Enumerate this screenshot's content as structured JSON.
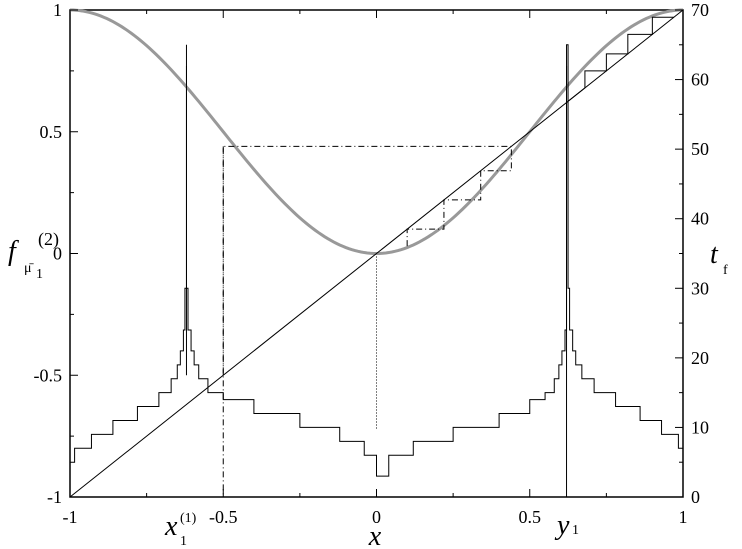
{
  "chart_data": {
    "type": "line",
    "x_axis": {
      "label": "x",
      "range": [
        -1,
        1
      ],
      "ticks": [
        -1,
        -0.5,
        0,
        0.5,
        1
      ],
      "tick_labels": [
        "-1",
        "-0.5",
        "0",
        "0.5",
        "1"
      ],
      "marked_points": [
        {
          "label": "x",
          "subscript": "1",
          "superscript": "(1)",
          "x": -0.62
        },
        {
          "label": "y",
          "subscript": "1",
          "x": 0.62
        }
      ]
    },
    "y_left": {
      "label": "f",
      "label_sub": "μ̄",
      "label_sub2": "1",
      "label_sup": "(2)",
      "range": [
        -1,
        1
      ],
      "ticks": [
        -1,
        -0.5,
        0,
        0.5,
        1
      ],
      "tick_labels": [
        "-1",
        "-0.5",
        "0",
        "0.5",
        "1"
      ]
    },
    "y_right": {
      "label": "t",
      "label_sub": "f",
      "range": [
        0,
        70
      ],
      "ticks": [
        0,
        10,
        20,
        30,
        40,
        50,
        60,
        70
      ],
      "tick_labels": [
        "0",
        "10",
        "20",
        "30",
        "40",
        "50",
        "60",
        "70"
      ]
    },
    "series": [
      {
        "kind": "map_curve",
        "axis": "left",
        "color": "#999999",
        "formula": "f(x) = 2x^2 - 1 scaled: cos-like from 1 at x=-1 to 0 at x=0 to 1 at x=1",
        "x": [
          -1,
          -0.8,
          -0.62,
          -0.4,
          -0.2,
          0,
          0.2,
          0.4,
          0.62,
          0.8,
          1
        ],
        "y": [
          1,
          0.9,
          0.62,
          0.33,
          0.09,
          0,
          0.09,
          0.33,
          0.62,
          0.9,
          1
        ]
      },
      {
        "kind": "diagonal",
        "axis": "left",
        "color": "#000000",
        "x": [
          -1,
          1
        ],
        "y": [
          -1,
          1
        ]
      },
      {
        "kind": "steps",
        "axis": "right",
        "color": "#000000",
        "x": [
          -1,
          -0.98,
          -0.92,
          -0.82,
          -0.72,
          -0.62,
          -0.52,
          -0.4,
          -0.25,
          -0.1,
          0,
          0.1,
          0.25,
          0.4,
          0.52,
          0.62,
          0.72,
          0.82,
          0.92,
          0.98,
          1
        ],
        "y": [
          5,
          7,
          9,
          11,
          13,
          65,
          15,
          12,
          10,
          8,
          4,
          8,
          10,
          12,
          15,
          65,
          13,
          11,
          9,
          7,
          5
        ]
      },
      {
        "kind": "cobweb",
        "axis": "left",
        "color": "#000000",
        "style": "dash-dot",
        "x": [
          -0.5,
          -0.5,
          0.44,
          0.44,
          0.34,
          0.34,
          0.22,
          0.22,
          0.1,
          0.1
        ],
        "y": [
          -0.5,
          0.44,
          0.44,
          0.34,
          0.34,
          0.22,
          0.22,
          0.1,
          0.1,
          0.02
        ]
      },
      {
        "kind": "cobweb",
        "axis": "left",
        "color": "#000000",
        "style": "solid",
        "x": [
          0.62,
          0.68,
          0.68,
          0.75,
          0.75,
          0.82,
          0.82,
          0.9,
          0.9,
          0.97
        ],
        "y": [
          0.62,
          0.68,
          0.75,
          0.75,
          0.82,
          0.82,
          0.9,
          0.9,
          0.97,
          0.97
        ]
      }
    ],
    "vertical_lines": [
      {
        "x": -0.62,
        "y_top": 0.77,
        "y_bottom": -0.5,
        "style": "solid"
      },
      {
        "x": 0.62,
        "y_top": 0.77,
        "y_bottom": -1,
        "style": "solid"
      },
      {
        "x": -0.5,
        "y_top": 0.44,
        "y_bottom": -1,
        "style": "dash-dot"
      },
      {
        "x": 0,
        "y_top": 0,
        "y_bottom": -0.72,
        "style": "dotted"
      }
    ]
  }
}
